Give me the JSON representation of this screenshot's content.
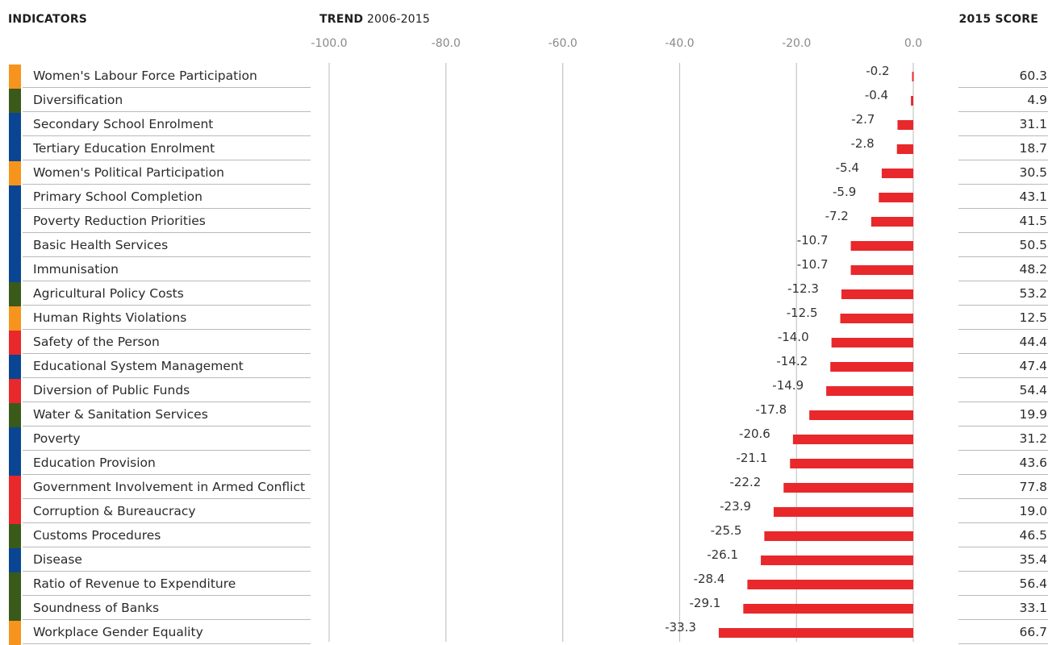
{
  "headers": {
    "indicators": "INDICATORS",
    "trend_bold": "TREND",
    "trend_years": "2006-2015",
    "score": "2015 SCORE"
  },
  "colors": {
    "bar": "#e8282b",
    "gridline": "#b9b9b9",
    "category_orange": "#f7941d",
    "category_green": "#3a5a1a",
    "category_blue": "#0a4593",
    "category_red": "#e8282b"
  },
  "chart_data": {
    "type": "bar",
    "orientation": "horizontal",
    "xlim": [
      -100,
      0
    ],
    "x_ticks": [
      "-100.0",
      "-80.0",
      "-60.0",
      "-40.0",
      "-20.0",
      "0.0"
    ],
    "grid": true,
    "categories": [
      "Women's Labour Force Participation",
      "Diversification",
      "Secondary School Enrolment",
      "Tertiary Education Enrolment",
      "Women's Political Participation",
      "Primary School Completion",
      "Poverty Reduction Priorities",
      "Basic Health Services",
      "Immunisation",
      "Agricultural Policy Costs",
      "Human Rights Violations",
      "Safety of the Person",
      "Educational System Management",
      "Diversion of Public Funds",
      "Water & Sanitation Services",
      "Poverty",
      "Education Provision",
      "Government Involvement in Armed Conflict",
      "Corruption & Bureaucracy",
      "Customs Procedures",
      "Disease",
      "Ratio of Revenue to Expenditure",
      "Soundness of Banks",
      "Workplace Gender Equality"
    ],
    "category_groups": [
      "orange",
      "green",
      "blue",
      "blue",
      "orange",
      "blue",
      "blue",
      "blue",
      "blue",
      "green",
      "orange",
      "red",
      "blue",
      "red",
      "green",
      "blue",
      "blue",
      "red",
      "red",
      "green",
      "blue",
      "green",
      "green",
      "orange"
    ],
    "values": [
      -0.2,
      -0.4,
      -2.7,
      -2.8,
      -5.4,
      -5.9,
      -7.2,
      -10.7,
      -10.7,
      -12.3,
      -12.5,
      -14.0,
      -14.2,
      -14.9,
      -17.8,
      -20.6,
      -21.1,
      -22.2,
      -23.9,
      -25.5,
      -26.1,
      -28.4,
      -29.1,
      -33.3
    ],
    "value_labels": [
      "-0.2",
      "-0.4",
      "-2.7",
      "-2.8",
      "-5.4",
      "-5.9",
      "-7.2",
      "-10.7",
      "-10.7",
      "-12.3",
      "-12.5",
      "-14.0",
      "-14.2",
      "-14.9",
      "-17.8",
      "-20.6",
      "-21.1",
      "-22.2",
      "-23.9",
      "-25.5",
      "-26.1",
      "-28.4",
      "-29.1",
      "-33.3"
    ],
    "scores": [
      "60.3",
      "4.9",
      "31.1",
      "18.7",
      "30.5",
      "43.1",
      "41.5",
      "50.5",
      "48.2",
      "53.2",
      "12.5",
      "44.4",
      "47.4",
      "54.4",
      "19.9",
      "31.2",
      "43.6",
      "77.8",
      "19.0",
      "46.5",
      "35.4",
      "56.4",
      "33.1",
      "66.7"
    ]
  }
}
